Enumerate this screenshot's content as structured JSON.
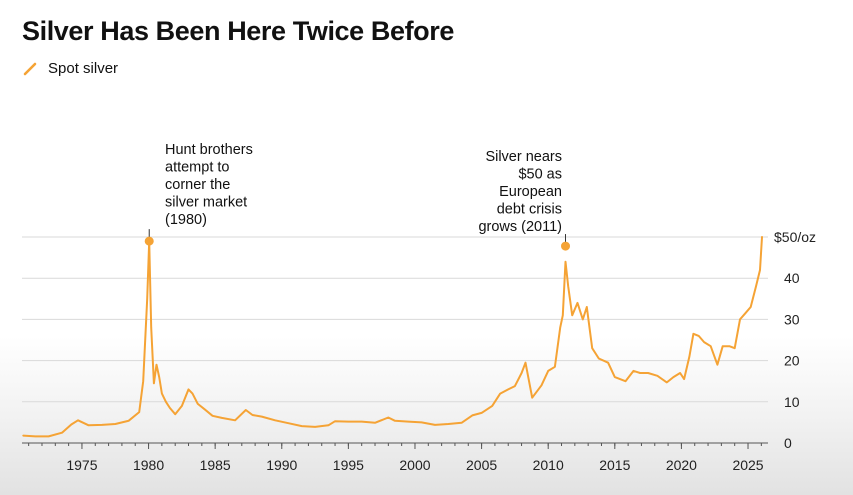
{
  "title": "Silver Has Been Here Twice Before",
  "legend": {
    "label": "Spot silver",
    "icon": "line-swatch-icon"
  },
  "colors": {
    "series": "#F5A335",
    "grid": "#d9d9d9",
    "axis": "#555555",
    "text": "#111111"
  },
  "chart_data": {
    "type": "line",
    "title": "Silver Has Been Here Twice Before",
    "xlabel": "",
    "ylabel": "",
    "xlim": [
      1970.5,
      2026.5
    ],
    "ylim": [
      0,
      50
    ],
    "grid": true,
    "legend": "top-left",
    "x_ticks": [
      1975,
      1980,
      1985,
      1990,
      1995,
      2000,
      2005,
      2010,
      2015,
      2020,
      2025
    ],
    "x_tick_labels": [
      "1975",
      "1980",
      "1985",
      "1990",
      "1995",
      "2000",
      "2005",
      "2010",
      "2015",
      "2020",
      "2025"
    ],
    "y_ticks": [
      0,
      10,
      20,
      30,
      40,
      50
    ],
    "y_tick_labels": [
      "0",
      "10",
      "20",
      "30",
      "40",
      "$50/oz"
    ],
    "series": [
      {
        "name": "Spot silver",
        "x": [
          1970.6,
          1971.5,
          1972.5,
          1973.5,
          1974.2,
          1974.7,
          1975.5,
          1976.5,
          1977.5,
          1978.5,
          1979.3,
          1979.6,
          1979.9,
          1980.05,
          1980.2,
          1980.4,
          1980.6,
          1980.8,
          1981.0,
          1981.3,
          1981.6,
          1982.0,
          1982.5,
          1983.0,
          1983.3,
          1983.7,
          1984.2,
          1984.8,
          1985.5,
          1986.5,
          1987.3,
          1987.8,
          1988.5,
          1989.5,
          1990.5,
          1991.5,
          1992.5,
          1993.5,
          1994.0,
          1995.0,
          1996.0,
          1997.0,
          1998.0,
          1998.5,
          1999.5,
          2000.5,
          2001.5,
          2002.5,
          2003.5,
          2004.3,
          2005.0,
          2005.8,
          2006.4,
          2007.0,
          2007.5,
          2008.0,
          2008.3,
          2008.8,
          2009.5,
          2010.0,
          2010.5,
          2010.9,
          2011.1,
          2011.3,
          2011.5,
          2011.8,
          2012.2,
          2012.6,
          2012.9,
          2013.3,
          2013.8,
          2014.5,
          2015.0,
          2015.8,
          2016.4,
          2016.9,
          2017.5,
          2018.2,
          2018.9,
          2019.4,
          2019.9,
          2020.2,
          2020.6,
          2020.9,
          2021.3,
          2021.7,
          2022.2,
          2022.7,
          2023.1,
          2023.6,
          2024.0,
          2024.4,
          2024.8,
          2025.2,
          2025.6,
          2025.9,
          2026.05
        ],
        "values": [
          1.8,
          1.6,
          1.6,
          2.5,
          4.5,
          5.5,
          4.3,
          4.4,
          4.6,
          5.4,
          7.5,
          15.0,
          35.0,
          49.0,
          28.0,
          14.5,
          19.0,
          16.0,
          12.0,
          10.0,
          8.5,
          7.0,
          9.0,
          13.0,
          12.0,
          9.5,
          8.2,
          6.6,
          6.1,
          5.5,
          8.0,
          6.8,
          6.4,
          5.5,
          4.8,
          4.1,
          3.9,
          4.3,
          5.3,
          5.2,
          5.2,
          4.9,
          6.2,
          5.4,
          5.2,
          5.0,
          4.4,
          4.6,
          4.9,
          6.7,
          7.3,
          9.0,
          12.0,
          13.0,
          13.8,
          17.0,
          19.5,
          11.0,
          14.0,
          17.5,
          18.5,
          28.0,
          31.0,
          44.0,
          38.0,
          31.0,
          34.0,
          30.0,
          33.0,
          23.0,
          20.5,
          19.5,
          16.0,
          15.0,
          17.5,
          17.0,
          17.0,
          16.3,
          14.7,
          16.0,
          17.0,
          15.5,
          21.0,
          26.5,
          26.0,
          24.5,
          23.5,
          19.0,
          23.5,
          23.5,
          23.0,
          30.0,
          31.5,
          33.0,
          38.0,
          42.0,
          50.0
        ]
      }
    ],
    "annotations": [
      {
        "x": 1980.05,
        "y": 49.0,
        "text": [
          "Hunt brothers",
          "attempt to",
          "corner the",
          "silver market",
          "(1980)"
        ]
      },
      {
        "x": 2011.3,
        "y": 47.8,
        "text": [
          "Silver nears",
          "$50 as",
          "European",
          "debt crisis",
          "grows (2011)"
        ]
      }
    ]
  }
}
